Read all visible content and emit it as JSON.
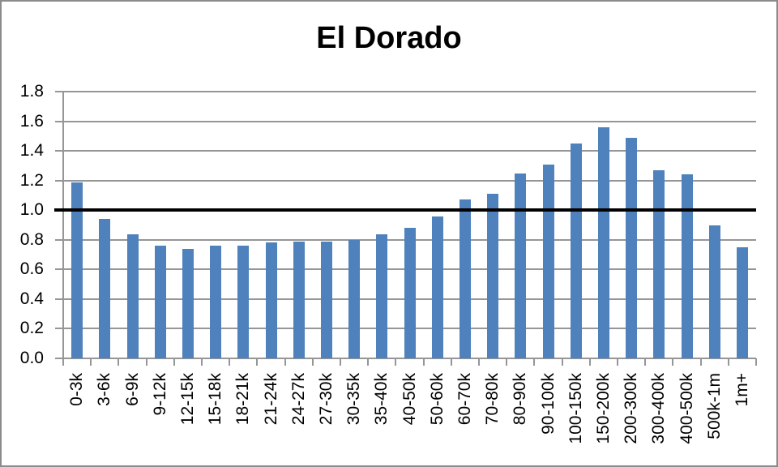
{
  "title": "El Dorado",
  "colors": {
    "bar": "#4f81bd",
    "gridline": "#969696",
    "axis": "#969696",
    "reference_line": "#000000",
    "frame_border": "#8c8c8c",
    "text": "#000000"
  },
  "chart_data": {
    "type": "bar",
    "title": "El Dorado",
    "categories": [
      "0-3k",
      "3-6k",
      "6-9k",
      "9-12k",
      "12-15k",
      "15-18k",
      "18-21k",
      "21-24k",
      "24-27k",
      "27-30k",
      "30-35k",
      "35-40k",
      "40-50k",
      "50-60k",
      "60-70k",
      "70-80k",
      "80-90k",
      "90-100k",
      "100-150k",
      "150-200k",
      "200-300k",
      "300-400k",
      "400-500k",
      "500k-1m",
      "1m+"
    ],
    "values": [
      1.19,
      0.94,
      0.84,
      0.76,
      0.74,
      0.76,
      0.76,
      0.78,
      0.79,
      0.79,
      0.8,
      0.84,
      0.88,
      0.96,
      1.07,
      1.11,
      1.25,
      1.31,
      1.45,
      1.56,
      1.49,
      1.27,
      1.24,
      0.9,
      0.75
    ],
    "xlabel": "",
    "ylabel": "",
    "ylim": [
      0,
      1.8
    ],
    "ytick_step": 0.2,
    "ytick_labels": [
      "0.0",
      "0.2",
      "0.4",
      "0.6",
      "0.8",
      "1.0",
      "1.2",
      "1.4",
      "1.6",
      "1.8"
    ],
    "grid": true,
    "legend": false,
    "reference_line_y": 1.0
  }
}
